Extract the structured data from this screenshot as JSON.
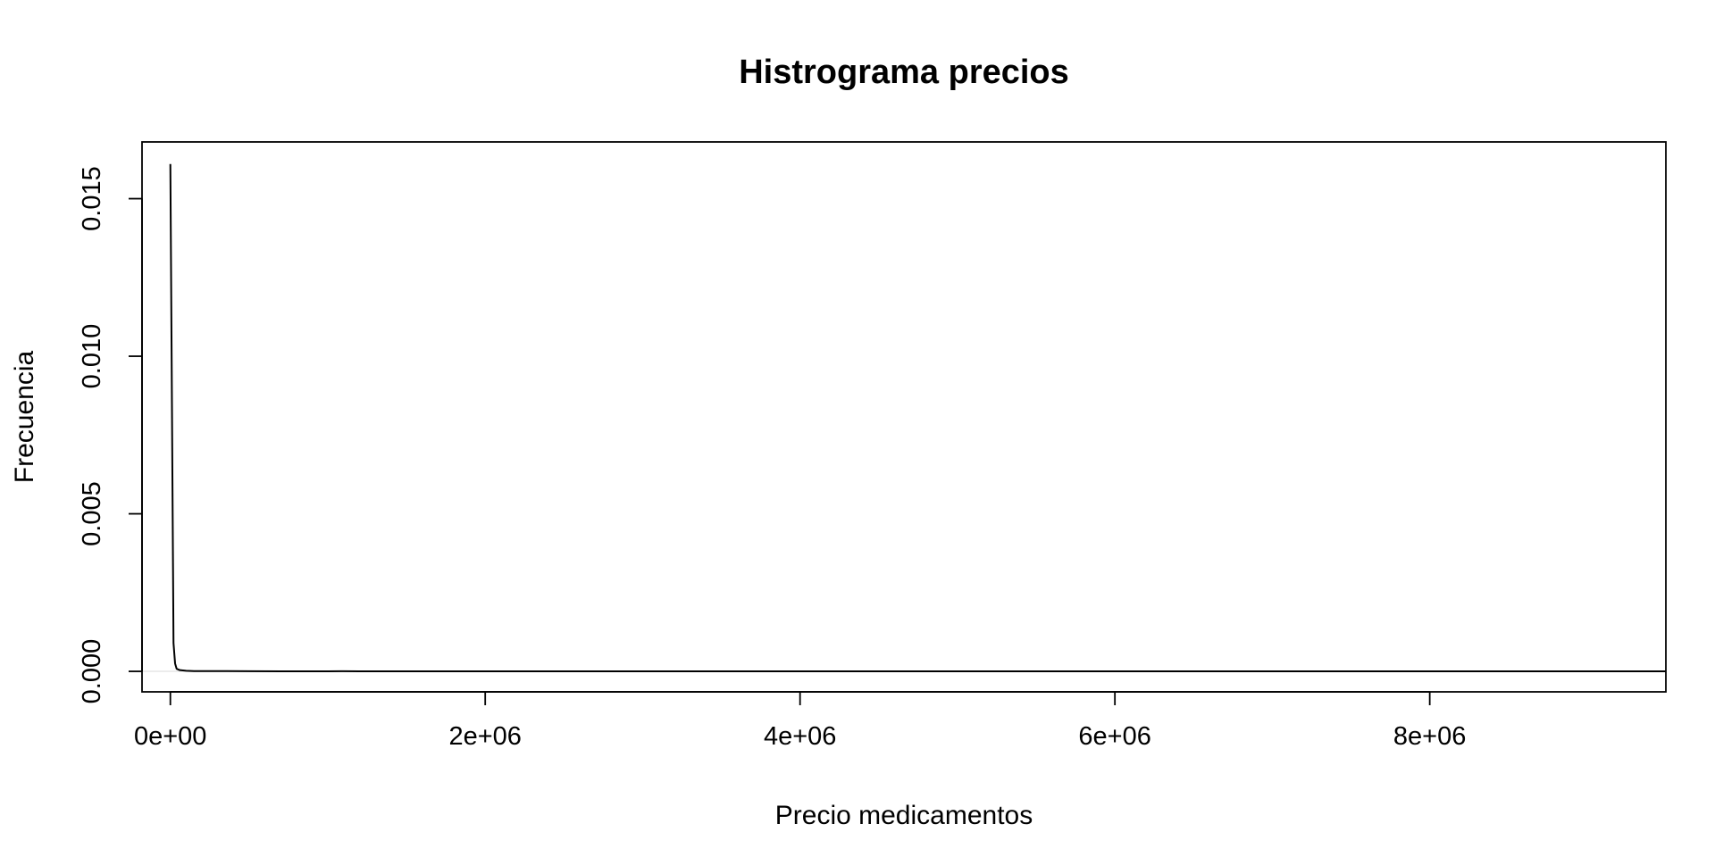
{
  "chart_data": {
    "type": "line",
    "title": "Histrograma precios",
    "xlabel": "Precio medicamentos",
    "ylabel": "Frecuencia",
    "xlim": [
      -180000,
      9500000
    ],
    "ylim": [
      -0.00065,
      0.0168
    ],
    "x_ticks": [
      {
        "value": 0,
        "label": "0e+00"
      },
      {
        "value": 2000000,
        "label": "2e+06"
      },
      {
        "value": 4000000,
        "label": "4e+06"
      },
      {
        "value": 6000000,
        "label": "6e+06"
      },
      {
        "value": 8000000,
        "label": "8e+06"
      }
    ],
    "y_ticks": [
      {
        "value": 0.0,
        "label": "0.000"
      },
      {
        "value": 0.005,
        "label": "0.005"
      },
      {
        "value": 0.01,
        "label": "0.010"
      },
      {
        "value": 0.015,
        "label": "0.015"
      }
    ],
    "grid": false,
    "zero_line": true,
    "series": [
      {
        "color": "#000000",
        "x": [
          0,
          10000,
          20000,
          30000,
          40000,
          60000,
          100000,
          150000,
          200000,
          300000,
          500000,
          700000,
          1000000,
          1100000,
          1200000,
          2000000,
          3000000,
          4000000,
          5000000,
          6000000,
          7000000,
          8000000,
          9000000,
          9500000
        ],
        "y": [
          0.0161,
          0.0085,
          0.0009,
          0.00025,
          8e-05,
          4e-05,
          2e-05,
          1e-05,
          1e-05,
          1e-05,
          5e-06,
          3e-06,
          2e-06,
          4e-06,
          1e-06,
          0.0,
          0.0,
          0.0,
          0.0,
          0.0,
          0.0,
          0.0,
          0.0,
          0.0
        ]
      }
    ]
  }
}
